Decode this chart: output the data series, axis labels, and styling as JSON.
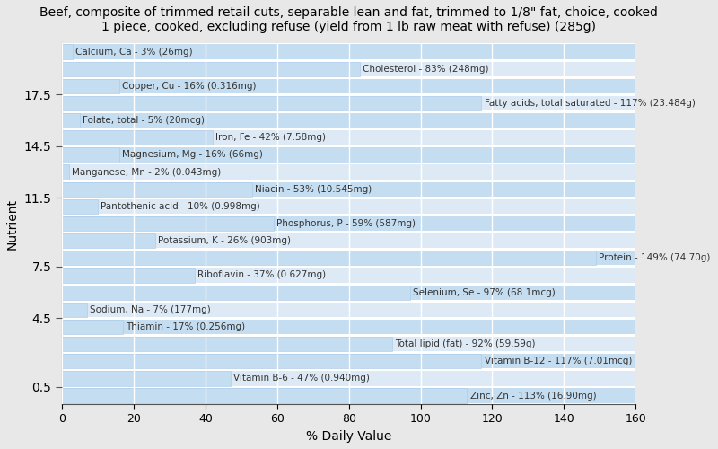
{
  "title": "Beef, composite of trimmed retail cuts, separable lean and fat, trimmed to 1/8\" fat, choice, cooked\n1 piece, cooked, excluding refuse (yield from 1 lb raw meat with refuse) (285g)",
  "xlabel": "% Daily Value",
  "ylabel": "Nutrient",
  "background_color": "#e8e8e8",
  "plot_bg_color": "#ffffff",
  "bar_color": "#c5ddf0",
  "bar_edge_color": "#a8c8e8",
  "row_alt_color": "#ddeaf5",
  "nutrients": [
    {
      "label": "Calcium, Ca - 3% (26mg)",
      "value": 3
    },
    {
      "label": "Cholesterol - 83% (248mg)",
      "value": 83
    },
    {
      "label": "Copper, Cu - 16% (0.316mg)",
      "value": 16
    },
    {
      "label": "Fatty acids, total saturated - 117% (23.484g)",
      "value": 117
    },
    {
      "label": "Folate, total - 5% (20mcg)",
      "value": 5
    },
    {
      "label": "Iron, Fe - 42% (7.58mg)",
      "value": 42
    },
    {
      "label": "Magnesium, Mg - 16% (66mg)",
      "value": 16
    },
    {
      "label": "Manganese, Mn - 2% (0.043mg)",
      "value": 2
    },
    {
      "label": "Niacin - 53% (10.545mg)",
      "value": 53
    },
    {
      "label": "Pantothenic acid - 10% (0.998mg)",
      "value": 10
    },
    {
      "label": "Phosphorus, P - 59% (587mg)",
      "value": 59
    },
    {
      "label": "Potassium, K - 26% (903mg)",
      "value": 26
    },
    {
      "label": "Protein - 149% (74.70g)",
      "value": 149
    },
    {
      "label": "Riboflavin - 37% (0.627mg)",
      "value": 37
    },
    {
      "label": "Selenium, Se - 97% (68.1mcg)",
      "value": 97
    },
    {
      "label": "Sodium, Na - 7% (177mg)",
      "value": 7
    },
    {
      "label": "Thiamin - 17% (0.256mg)",
      "value": 17
    },
    {
      "label": "Total lipid (fat) - 92% (59.59g)",
      "value": 92
    },
    {
      "label": "Vitamin B-12 - 117% (7.01mcg)",
      "value": 117
    },
    {
      "label": "Vitamin B-6 - 47% (0.940mg)",
      "value": 47
    },
    {
      "label": "Zinc, Zn - 113% (16.90mg)",
      "value": 113
    }
  ],
  "xlim": [
    0,
    160
  ],
  "xticks": [
    0,
    20,
    40,
    60,
    80,
    100,
    120,
    140,
    160
  ],
  "title_fontsize": 10,
  "label_fontsize": 7.5,
  "tick_fontsize": 9,
  "axis_label_fontsize": 10
}
